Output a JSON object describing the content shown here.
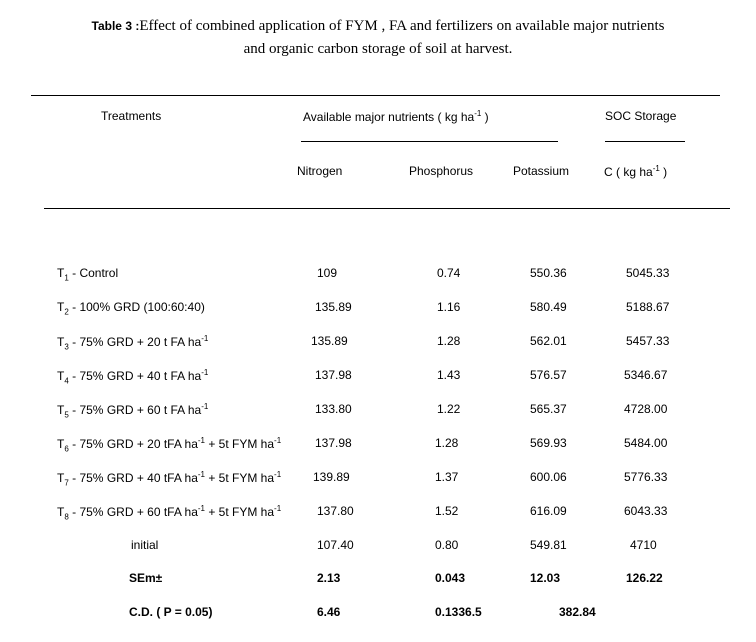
{
  "caption": {
    "label": "Table 3 :",
    "line1": "Effect of combined application of  FYM , FA and fertilizers on available major nutrients",
    "line2": "and organic carbon storage of soil  at  harvest."
  },
  "header": {
    "treatments": "Treatments",
    "group": "Available major nutrients ( kg ha",
    "group_sup": "-1",
    "group_close": " )",
    "soc": "SOC Storage",
    "nitrogen": "Nitrogen",
    "phosphorus": "Phosphorus",
    "potassium": "Potassium",
    "c_unit": "C ( kg ha",
    "c_sup": "-1",
    "c_close": "  )"
  },
  "rows": [
    {
      "t": "T",
      "sub": "1",
      "desc": " -   Control",
      "n": "109",
      "p": "0.74",
      "k": "550.36",
      "c": "5045.33"
    },
    {
      "t": "T",
      "sub": "2",
      "desc": "  -  100% GRD (100:60:40)",
      "n": "135.89",
      "p": "1.16",
      "k": "580.49",
      "c": "5188.67"
    },
    {
      "t": "T",
      "sub": "3",
      "desc": "  -  75% GRD + 20 t FA ha",
      "sup": "-1",
      "n": "135.89",
      "p": "1.28",
      "k": "562.01",
      "c": "5457.33"
    },
    {
      "t": "T",
      "sub": "4",
      "desc": "  -  75% GRD + 40 t FA ha",
      "sup": "-1",
      "n": "137.98",
      "p": "1.43",
      "k": "576.57",
      "c": "5346.67"
    },
    {
      "t": "T",
      "sub": "5",
      "desc": "  -  75% GRD + 60 t FA ha",
      "sup": "-1",
      "n": "133.80",
      "p": "1.22",
      "k": "565.37",
      "c": "4728.00"
    },
    {
      "t": "T",
      "sub": "6",
      "desc": "  - 75% GRD + 20 tFA ha",
      "sup": "-1",
      "desc2": " + 5t FYM ha",
      "sup2": "-1",
      "n": "137.98",
      "p": "1.28",
      "k": "569.93",
      "c": "5484.00"
    },
    {
      "t": "T",
      "sub": "7",
      "desc": "  - 75% GRD + 40 tFA ha",
      "sup": "-1",
      "desc2": " + 5t FYM ha",
      "sup2": "-1",
      "n": "139.89",
      "p": "1.37",
      "k": "600.06",
      "c": "5776.33"
    },
    {
      "t": "T",
      "sub": "8",
      "desc": "  - 75% GRD + 60 tFA ha",
      "sup": "-1",
      "desc2": " + 5t FYM ha",
      "sup2": "-1",
      "n": "137.80",
      "p": "1.52",
      "k": "616.09",
      "c": "6043.33"
    }
  ],
  "initial": {
    "label": "initial",
    "n": "107.40",
    "p": "0.80",
    "k": "549.81",
    "c": "4710"
  },
  "sem": {
    "label": "SEm±",
    "n": "2.13",
    "p": "0.043",
    "k": "12.03",
    "c": "126.22"
  },
  "cd": {
    "label": "C.D. ( P = 0.05)",
    "n": "6.46",
    "p": "0.1336.5",
    "k": "382.84"
  }
}
